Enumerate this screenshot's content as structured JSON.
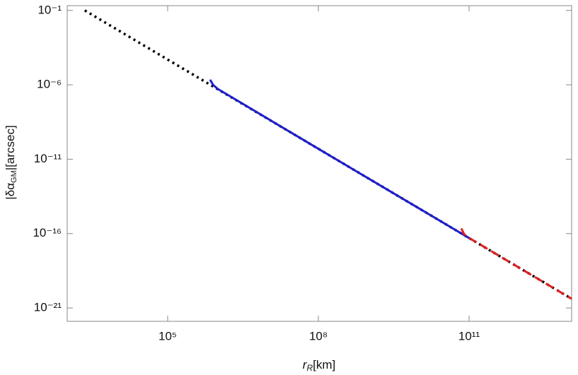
{
  "chart_data": {
    "type": "line",
    "xlabel": [
      "r",
      "R",
      "[km]"
    ],
    "ylabel": [
      "|δα",
      "GM",
      "|[arcsec]"
    ],
    "xscale": "log",
    "yscale": "log",
    "xlim": [
      1000,
      11000000000000.0
    ],
    "ylim": [
      1.26e-22,
      0.21
    ],
    "xticks": [
      {
        "value": 100000,
        "label": "10⁵"
      },
      {
        "value": 100000000,
        "label": "10⁸"
      },
      {
        "value": 100000000000,
        "label": "10¹¹"
      }
    ],
    "yticks": [
      {
        "value": 0.1,
        "label": "10⁻¹"
      },
      {
        "value": 1e-06,
        "label": "10⁻⁶"
      },
      {
        "value": 1e-11,
        "label": "10⁻¹¹"
      },
      {
        "value": 1e-16,
        "label": "10⁻¹⁶"
      },
      {
        "value": 1e-21,
        "label": "10⁻²¹"
      }
    ],
    "grid": false,
    "series": [
      {
        "color": "#000000",
        "dash": "dotted",
        "x": [
          2240,
          100000,
          100000000,
          100000000000,
          11000000000000.0
        ],
        "values": [
          0.0997,
          5e-05,
          5e-11,
          5e-17,
          4.13e-21
        ]
      },
      {
        "color": "#1f1fcc",
        "dash": "solid",
        "x": [
          700000,
          800000,
          1000000,
          100000000,
          100000000000,
          120000000000
        ],
        "values": [
          2.2e-06,
          1e-06,
          5.2e-07,
          5e-11,
          5e-17,
          3.5e-17
        ]
      },
      {
        "color": "#e0201e",
        "dash": "dashed",
        "x": [
          70000000000,
          80000000000,
          100000000000,
          1000000000000,
          11000000000000.0
        ],
        "values": [
          2.2e-16,
          9e-17,
          5.1e-17,
          5e-19,
          4.13e-21
        ]
      }
    ]
  }
}
